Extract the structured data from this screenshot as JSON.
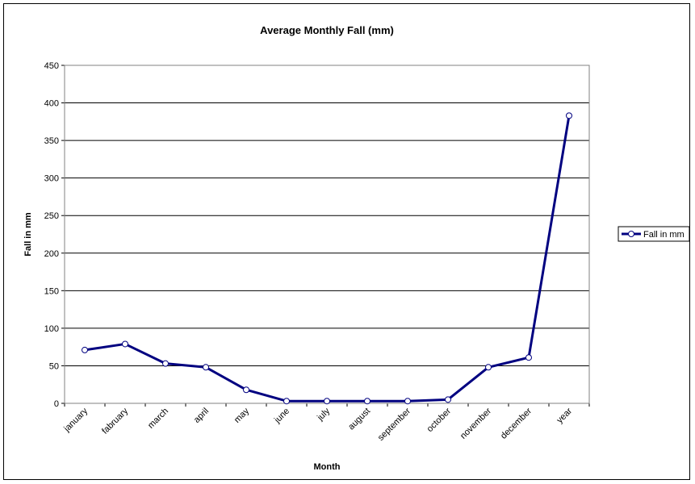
{
  "chart_data": {
    "type": "line",
    "title": "Average Monthly Fall (mm)",
    "xlabel": "Month",
    "ylabel": "Fall in mm",
    "categories": [
      "january",
      "fabruary",
      "march",
      "april",
      "may",
      "june",
      "july",
      "august",
      "september",
      "october",
      "november",
      "december",
      "year"
    ],
    "series": [
      {
        "name": "Fall in mm",
        "color": "#000080",
        "values": [
          71,
          79,
          53,
          48,
          18,
          3,
          3,
          3,
          3,
          5,
          48,
          61,
          383
        ]
      }
    ],
    "ylim": [
      0,
      450
    ],
    "yticks": [
      0,
      50,
      100,
      150,
      200,
      250,
      300,
      350,
      400,
      450
    ],
    "grid": "horizontal",
    "legend_position": "right",
    "marker": "open-circle"
  }
}
